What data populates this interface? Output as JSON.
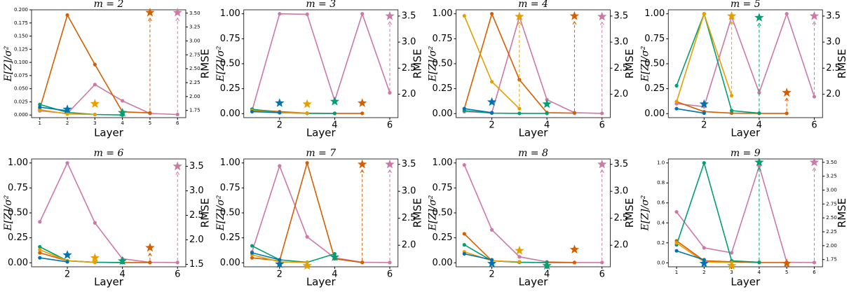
{
  "chart_data": [
    {
      "type": "line",
      "title": "m = 2",
      "x_label": "Layer",
      "y_label": "E[Z]/σ²",
      "y2_label": "RMSE",
      "xlim": [
        0.7,
        6.3
      ],
      "xticks": [
        1,
        2,
        3,
        4,
        5,
        6
      ],
      "ylim": [
        -0.005,
        0.2
      ],
      "yticks": [
        {
          "value": 0,
          "label": "0.000"
        },
        {
          "value": 0.025,
          "label": "0.025"
        },
        {
          "value": 0.05,
          "label": "0.050"
        },
        {
          "value": 0.075,
          "label": "0.075"
        },
        {
          "value": 0.1,
          "label": "0.100"
        },
        {
          "value": 0.125,
          "label": "0.125"
        },
        {
          "value": 0.15,
          "label": "0.150"
        },
        {
          "value": 0.175,
          "label": "0.175"
        },
        {
          "value": 0.2,
          "label": "0.200"
        }
      ],
      "y2lim": [
        1.62,
        3.56
      ],
      "y2ticks": [
        1.75,
        {
          "value": 2,
          "label": "2.00"
        },
        2.25,
        {
          "value": 2.5,
          "label": "2.50"
        },
        2.75,
        {
          "value": 3,
          "label": "3.00"
        },
        3.25,
        {
          "value": 3.5,
          "label": "3.50"
        }
      ],
      "series": [
        {
          "color": "#cc79a7",
          "x": [
            1,
            2,
            3,
            4,
            5,
            6
          ],
          "values": [
            0.008,
            0.003,
            0.058,
            0.027,
            0.003,
            0.001
          ],
          "star_x": 6,
          "star_value": 3.51
        },
        {
          "color": "#d55e00",
          "x": [
            1,
            2,
            3,
            4,
            5
          ],
          "values": [
            0.012,
            0.19,
            0.096,
            0.006,
            0.004
          ],
          "star_x": 5,
          "star_value": 3.51
        },
        {
          "color": "#009e73",
          "x": [
            1,
            2,
            3,
            4
          ],
          "values": [
            0.02,
            0.005,
            0.001,
            0.0
          ],
          "star_x": 4,
          "star_value": 1.71
        },
        {
          "color": "#e69f00",
          "x": [
            1,
            2,
            3
          ],
          "values": [
            0.01,
            0.002,
            0.001
          ],
          "star_x": 3,
          "star_value": 1.87
        },
        {
          "color": "#0072b2",
          "x": [
            1,
            2
          ],
          "values": [
            0.015,
            0.008
          ],
          "star_x": 2,
          "star_value": 1.77
        }
      ]
    },
    {
      "type": "line",
      "title": "m = 3",
      "x_label": "Layer",
      "y_label": "E[Z]/σ²",
      "y2_label": "RMSE",
      "xlim": [
        0.7,
        6.3
      ],
      "xticks": [
        2,
        4,
        6
      ],
      "ylim": [
        -0.04,
        1.04
      ],
      "yticks": [
        {
          "value": 0,
          "label": "0.00"
        },
        0.25,
        {
          "value": 0.5,
          "label": "0.50"
        },
        0.75,
        {
          "value": 1,
          "label": "1.00"
        }
      ],
      "y2lim": [
        1.55,
        3.62
      ],
      "y2ticks": [
        {
          "value": 2,
          "label": "2.0"
        },
        2.5,
        {
          "value": 3,
          "label": "3.0"
        },
        3.5
      ],
      "series": [
        {
          "color": "#cc79a7",
          "x": [
            1,
            2,
            3,
            4,
            5,
            6
          ],
          "values": [
            0.03,
            1.0,
            0.995,
            0.13,
            1.0,
            0.21
          ],
          "star_x": 6,
          "star_value": 3.5
        },
        {
          "color": "#d55e00",
          "x": [
            1,
            2,
            3,
            4,
            5
          ],
          "values": [
            0.04,
            0.02,
            0.005,
            0.003,
            0.003
          ],
          "star_x": 5,
          "star_value": 1.83
        },
        {
          "color": "#009e73",
          "x": [
            1,
            2,
            3,
            4
          ],
          "values": [
            0.045,
            0.01,
            0.003,
            0.002
          ],
          "star_x": 4,
          "star_value": 1.86
        },
        {
          "color": "#e69f00",
          "x": [
            1,
            2,
            3
          ],
          "values": [
            0.03,
            0.01,
            0.005
          ],
          "star_x": 3,
          "star_value": 1.81
        },
        {
          "color": "#0072b2",
          "x": [
            1,
            2
          ],
          "values": [
            0.02,
            0.01
          ],
          "star_x": 2,
          "star_value": 1.83
        }
      ]
    },
    {
      "type": "line",
      "title": "m = 4",
      "x_label": "Layer",
      "y_label": "E[Z]/σ²",
      "y2_label": "RMSE",
      "xlim": [
        0.7,
        6.3
      ],
      "xticks": [
        2,
        4,
        6
      ],
      "ylim": [
        -0.04,
        1.04
      ],
      "yticks": [
        {
          "value": 0,
          "label": "0.00"
        },
        0.25,
        {
          "value": 0.5,
          "label": "0.50"
        },
        0.75,
        {
          "value": 1,
          "label": "1.00"
        }
      ],
      "y2lim": [
        1.55,
        3.62
      ],
      "y2ticks": [
        {
          "value": 2,
          "label": "2.0"
        },
        2.5,
        {
          "value": 3,
          "label": "3.0"
        },
        3.5
      ],
      "series": [
        {
          "color": "#cc79a7",
          "x": [
            1,
            2,
            3,
            4,
            5,
            6
          ],
          "values": [
            0.02,
            0.01,
            0.97,
            0.14,
            0.01,
            0.003
          ],
          "star_x": 6,
          "star_value": 3.49
        },
        {
          "color": "#d55e00",
          "x": [
            1,
            2,
            3,
            4,
            5
          ],
          "values": [
            0.05,
            1.0,
            0.34,
            0.01,
            0.005
          ],
          "star_x": 5,
          "star_value": 3.5
        },
        {
          "color": "#009e73",
          "x": [
            1,
            2,
            3,
            4
          ],
          "values": [
            0.03,
            0.005,
            0.003,
            0.003
          ],
          "star_x": 4,
          "star_value": 1.81
        },
        {
          "color": "#e69f00",
          "x": [
            1,
            2,
            3
          ],
          "values": [
            0.98,
            0.32,
            0.05
          ],
          "star_x": 3,
          "star_value": 3.49
        },
        {
          "color": "#0072b2",
          "x": [
            1,
            2
          ],
          "values": [
            0.05,
            0.01
          ],
          "star_x": 2,
          "star_value": 1.85
        }
      ]
    },
    {
      "type": "line",
      "title": "m = 5",
      "x_label": "Layer",
      "y_label": "E[Z]/σ²",
      "y2_label": "RMSE",
      "xlim": [
        0.7,
        6.3
      ],
      "xticks": [
        2,
        4,
        6
      ],
      "ylim": [
        -0.04,
        1.04
      ],
      "yticks": [
        {
          "value": 0,
          "label": "0.00"
        },
        0.25,
        {
          "value": 0.5,
          "label": "0.50"
        },
        0.75,
        {
          "value": 1,
          "label": "1.00"
        }
      ],
      "y2lim": [
        1.55,
        3.62
      ],
      "y2ticks": [
        {
          "value": 2,
          "label": "2.0"
        },
        2.5,
        {
          "value": 3,
          "label": "3.0"
        },
        3.5
      ],
      "series": [
        {
          "color": "#cc79a7",
          "x": [
            1,
            2,
            3,
            4,
            5,
            6
          ],
          "values": [
            0.1,
            0.07,
            0.97,
            0.21,
            1.0,
            0.17
          ],
          "star_x": 6,
          "star_value": 3.5
        },
        {
          "color": "#d55e00",
          "x": [
            1,
            2,
            3,
            4,
            5
          ],
          "values": [
            0.12,
            0.02,
            0.005,
            0.003,
            0.003
          ],
          "star_x": 5,
          "star_value": 2.03
        },
        {
          "color": "#009e73",
          "x": [
            1,
            2,
            3,
            4
          ],
          "values": [
            0.28,
            1.0,
            0.03,
            0.005
          ],
          "star_x": 4,
          "star_value": 3.47
        },
        {
          "color": "#e69f00",
          "x": [
            1,
            2,
            3
          ],
          "values": [
            0.12,
            1.0,
            0.18
          ],
          "star_x": 3,
          "star_value": 3.5
        },
        {
          "color": "#0072b2",
          "x": [
            1,
            2
          ],
          "values": [
            0.05,
            0.005
          ],
          "star_x": 2,
          "star_value": 1.81
        }
      ]
    },
    {
      "type": "line",
      "title": "m = 6",
      "x_label": "Layer",
      "y_label": "E[Z]/σ²",
      "y2_label": "RMSE",
      "xlim": [
        0.7,
        6.3
      ],
      "xticks": [
        2,
        4,
        6
      ],
      "ylim": [
        -0.04,
        1.04
      ],
      "yticks": [
        {
          "value": 0,
          "label": "0.00"
        },
        0.25,
        {
          "value": 0.5,
          "label": "0.50"
        },
        0.75,
        {
          "value": 1,
          "label": "1.00"
        }
      ],
      "y2lim": [
        1.45,
        3.65
      ],
      "y2ticks": [
        1.5,
        {
          "value": 2,
          "label": "2.0"
        },
        2.5,
        {
          "value": 3,
          "label": "3.0"
        },
        3.5
      ],
      "series": [
        {
          "color": "#cc79a7",
          "x": [
            1,
            2,
            3,
            4,
            5,
            6
          ],
          "values": [
            0.41,
            1.0,
            0.4,
            0.04,
            0.005,
            0.003
          ],
          "star_x": 6,
          "star_value": 3.5
        },
        {
          "color": "#d55e00",
          "x": [
            1,
            2,
            3,
            4,
            5
          ],
          "values": [
            0.1,
            0.02,
            0.005,
            0.003,
            0.003
          ],
          "star_x": 5,
          "star_value": 1.84
        },
        {
          "color": "#009e73",
          "x": [
            1,
            2,
            3,
            4
          ],
          "values": [
            0.16,
            0.02,
            0.005,
            0.003
          ],
          "star_x": 4,
          "star_value": 1.57
        },
        {
          "color": "#e69f00",
          "x": [
            1,
            2,
            3
          ],
          "values": [
            0.13,
            0.02,
            0.005
          ],
          "star_x": 3,
          "star_value": 1.63
        },
        {
          "color": "#0072b2",
          "x": [
            1,
            2
          ],
          "values": [
            0.05,
            0.01
          ],
          "star_x": 2,
          "star_value": 1.69
        }
      ]
    },
    {
      "type": "line",
      "title": "m = 7",
      "x_label": "Layer",
      "y_label": "E[Z]/σ²",
      "y2_label": "RMSE",
      "xlim": [
        0.7,
        6.3
      ],
      "xticks": [
        2,
        4,
        6
      ],
      "ylim": [
        -0.04,
        1.04
      ],
      "yticks": [
        {
          "value": 0,
          "label": "0.00"
        },
        0.25,
        {
          "value": 0.5,
          "label": "0.50"
        },
        0.75,
        {
          "value": 1,
          "label": "1.00"
        }
      ],
      "y2lim": [
        1.6,
        3.6
      ],
      "y2ticks": [
        {
          "value": 2,
          "label": "2.0"
        },
        2.5,
        {
          "value": 3,
          "label": "3.0"
        },
        3.5
      ],
      "series": [
        {
          "color": "#cc79a7",
          "x": [
            1,
            2,
            3,
            4,
            5,
            6
          ],
          "values": [
            0.11,
            0.97,
            0.26,
            0.05,
            0.005,
            0.003
          ],
          "star_x": 6,
          "star_value": 3.5
        },
        {
          "color": "#d55e00",
          "x": [
            1,
            2,
            3,
            4,
            5
          ],
          "values": [
            0.05,
            0.02,
            1.0,
            0.04,
            0.003
          ],
          "star_x": 5,
          "star_value": 3.5
        },
        {
          "color": "#009e73",
          "x": [
            1,
            2,
            3,
            4
          ],
          "values": [
            0.17,
            0.03,
            0.005,
            0.09
          ],
          "star_x": 4,
          "star_value": 1.78
        },
        {
          "color": "#e69f00",
          "x": [
            1,
            2,
            3
          ],
          "values": [
            0.08,
            0.01,
            0.003
          ],
          "star_x": 3,
          "star_value": 1.62
        },
        {
          "color": "#0072b2",
          "x": [
            1,
            2
          ],
          "values": [
            0.1,
            0.03
          ],
          "star_x": 2,
          "star_value": 1.65
        }
      ]
    },
    {
      "type": "line",
      "title": "m = 8",
      "x_label": "Layer",
      "y_label": "E[Z]/σ²",
      "y2_label": "RMSE",
      "xlim": [
        0.7,
        6.3
      ],
      "xticks": [
        2,
        4,
        6
      ],
      "ylim": [
        -0.04,
        1.04
      ],
      "yticks": [
        {
          "value": 0,
          "label": "0.00"
        },
        0.25,
        {
          "value": 0.5,
          "label": "0.50"
        },
        0.75,
        {
          "value": 1,
          "label": "1.00"
        }
      ],
      "y2lim": [
        1.6,
        3.6
      ],
      "y2ticks": [
        {
          "value": 2,
          "label": "2.0"
        },
        2.5,
        {
          "value": 3,
          "label": "3.0"
        },
        3.5
      ],
      "series": [
        {
          "color": "#cc79a7",
          "x": [
            1,
            2,
            3,
            4,
            5,
            6
          ],
          "values": [
            0.98,
            0.33,
            0.06,
            0.01,
            0.003,
            0.003
          ],
          "star_x": 6,
          "star_value": 3.5
        },
        {
          "color": "#d55e00",
          "x": [
            1,
            2,
            3,
            4,
            5
          ],
          "values": [
            0.29,
            0.02,
            0.005,
            0.003,
            0.003
          ],
          "star_x": 5,
          "star_value": 1.92
        },
        {
          "color": "#009e73",
          "x": [
            1,
            2,
            3,
            4
          ],
          "values": [
            0.18,
            0.02,
            0.005,
            0.003
          ],
          "star_x": 4,
          "star_value": 1.62
        },
        {
          "color": "#e69f00",
          "x": [
            1,
            2,
            3
          ],
          "values": [
            0.11,
            0.02,
            0.01
          ],
          "star_x": 3,
          "star_value": 1.9
        },
        {
          "color": "#0072b2",
          "x": [
            1,
            2
          ],
          "values": [
            0.09,
            0.03
          ],
          "star_x": 2,
          "star_value": 1.66
        }
      ]
    },
    {
      "type": "line",
      "title": "m = 9",
      "x_label": "Layer",
      "y_label": "E[Z]/σ²",
      "y2_label": "RMSE",
      "xlim": [
        0.7,
        6.3
      ],
      "xticks": [
        1,
        2,
        3,
        4,
        5,
        6
      ],
      "ylim": [
        -0.04,
        1.04
      ],
      "yticks": [
        {
          "value": 0,
          "label": "0.0"
        },
        0.2,
        0.4,
        0.6,
        0.8,
        {
          "value": 1,
          "label": "1.0"
        }
      ],
      "y2lim": [
        1.62,
        3.56
      ],
      "y2ticks": [
        1.75,
        {
          "value": 2,
          "label": "2.00"
        },
        2.25,
        {
          "value": 2.5,
          "label": "2.50"
        },
        2.75,
        {
          "value": 3,
          "label": "3.00"
        },
        3.25,
        {
          "value": 3.5,
          "label": "3.50"
        }
      ],
      "series": [
        {
          "color": "#cc79a7",
          "x": [
            1,
            2,
            3,
            4,
            5,
            6
          ],
          "values": [
            0.51,
            0.15,
            0.1,
            0.97,
            0.005,
            0.003
          ],
          "star_x": 6,
          "star_value": 3.5
        },
        {
          "color": "#d55e00",
          "x": [
            1,
            2,
            3,
            4,
            5
          ],
          "values": [
            0.22,
            0.02,
            0.01,
            0.003,
            0.003
          ],
          "star_x": 5,
          "star_value": 1.68
        },
        {
          "color": "#009e73",
          "x": [
            1,
            2,
            3,
            4
          ],
          "values": [
            0.18,
            1.0,
            0.02,
            0.005
          ],
          "star_x": 4,
          "star_value": 3.5
        },
        {
          "color": "#e69f00",
          "x": [
            1,
            2,
            3
          ],
          "values": [
            0.2,
            0.01,
            0.003
          ],
          "star_x": 3,
          "star_value": 1.64
        },
        {
          "color": "#0072b2",
          "x": [
            1,
            2
          ],
          "values": [
            0.12,
            0.03
          ],
          "star_x": 2,
          "star_value": 1.68
        }
      ]
    }
  ]
}
